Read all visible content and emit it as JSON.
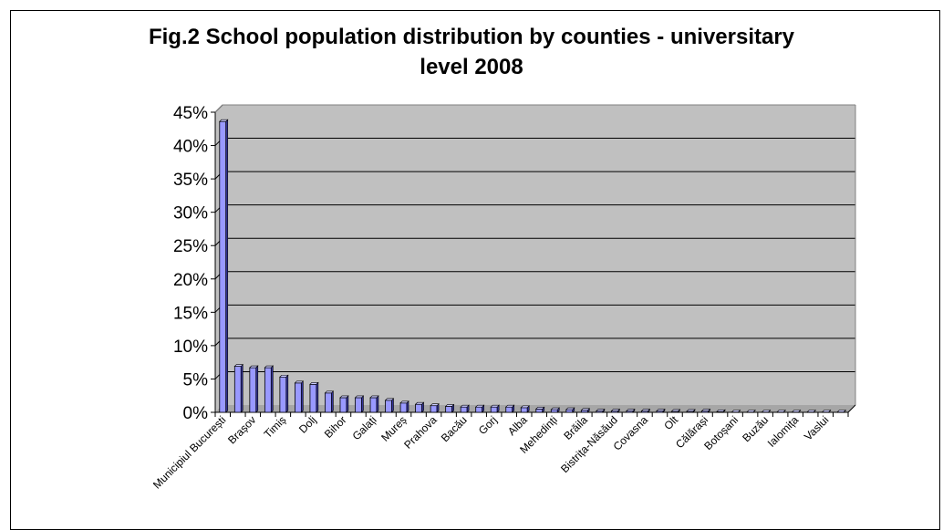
{
  "chart_data": {
    "type": "bar",
    "title_line1": "Fig.2 School population distribution by counties - universitary",
    "title_line2": "level 2008",
    "xlabel": "",
    "ylabel": "",
    "ylim": [
      0,
      45
    ],
    "yticks": [
      "0%",
      "5%",
      "10%",
      "15%",
      "20%",
      "25%",
      "30%",
      "35%",
      "40%",
      "45%"
    ],
    "grid": true,
    "legend": "none",
    "colors": {
      "bar_front": "#9999ff",
      "bar_side": "#333399",
      "bar_top": "#ccccff",
      "plot_bg": "#c0c0c0"
    },
    "categories": [
      "Municipiul București",
      "",
      "Brașov",
      "",
      "Timiș",
      "",
      "Dolj",
      "",
      "Bihor",
      "",
      "Galați",
      "",
      "Mureș",
      "",
      "Prahova",
      "",
      "Bacău",
      "",
      "Gorj",
      "",
      "Alba",
      "",
      "Mehedinți",
      "",
      "Brăila",
      "",
      "Bistrița-Năsăud",
      "",
      "Covasna",
      "",
      "Olt",
      "",
      "Călărași",
      "",
      "Botoșani",
      "",
      "Buzău",
      "",
      "Ialomița",
      "",
      "Vaslui",
      ""
    ],
    "values": [
      43.6,
      6.9,
      6.7,
      6.7,
      5.3,
      4.4,
      4.2,
      2.9,
      2.2,
      2.2,
      2.2,
      1.8,
      1.4,
      1.2,
      1.0,
      0.9,
      0.8,
      0.8,
      0.8,
      0.8,
      0.7,
      0.5,
      0.4,
      0.4,
      0.3,
      0.2,
      0.2,
      0.2,
      0.2,
      0.2,
      0.15,
      0.15,
      0.2,
      0.1,
      0.05,
      0.05,
      0.05,
      0.05,
      0.05,
      0.05,
      0.05,
      0.05
    ]
  }
}
